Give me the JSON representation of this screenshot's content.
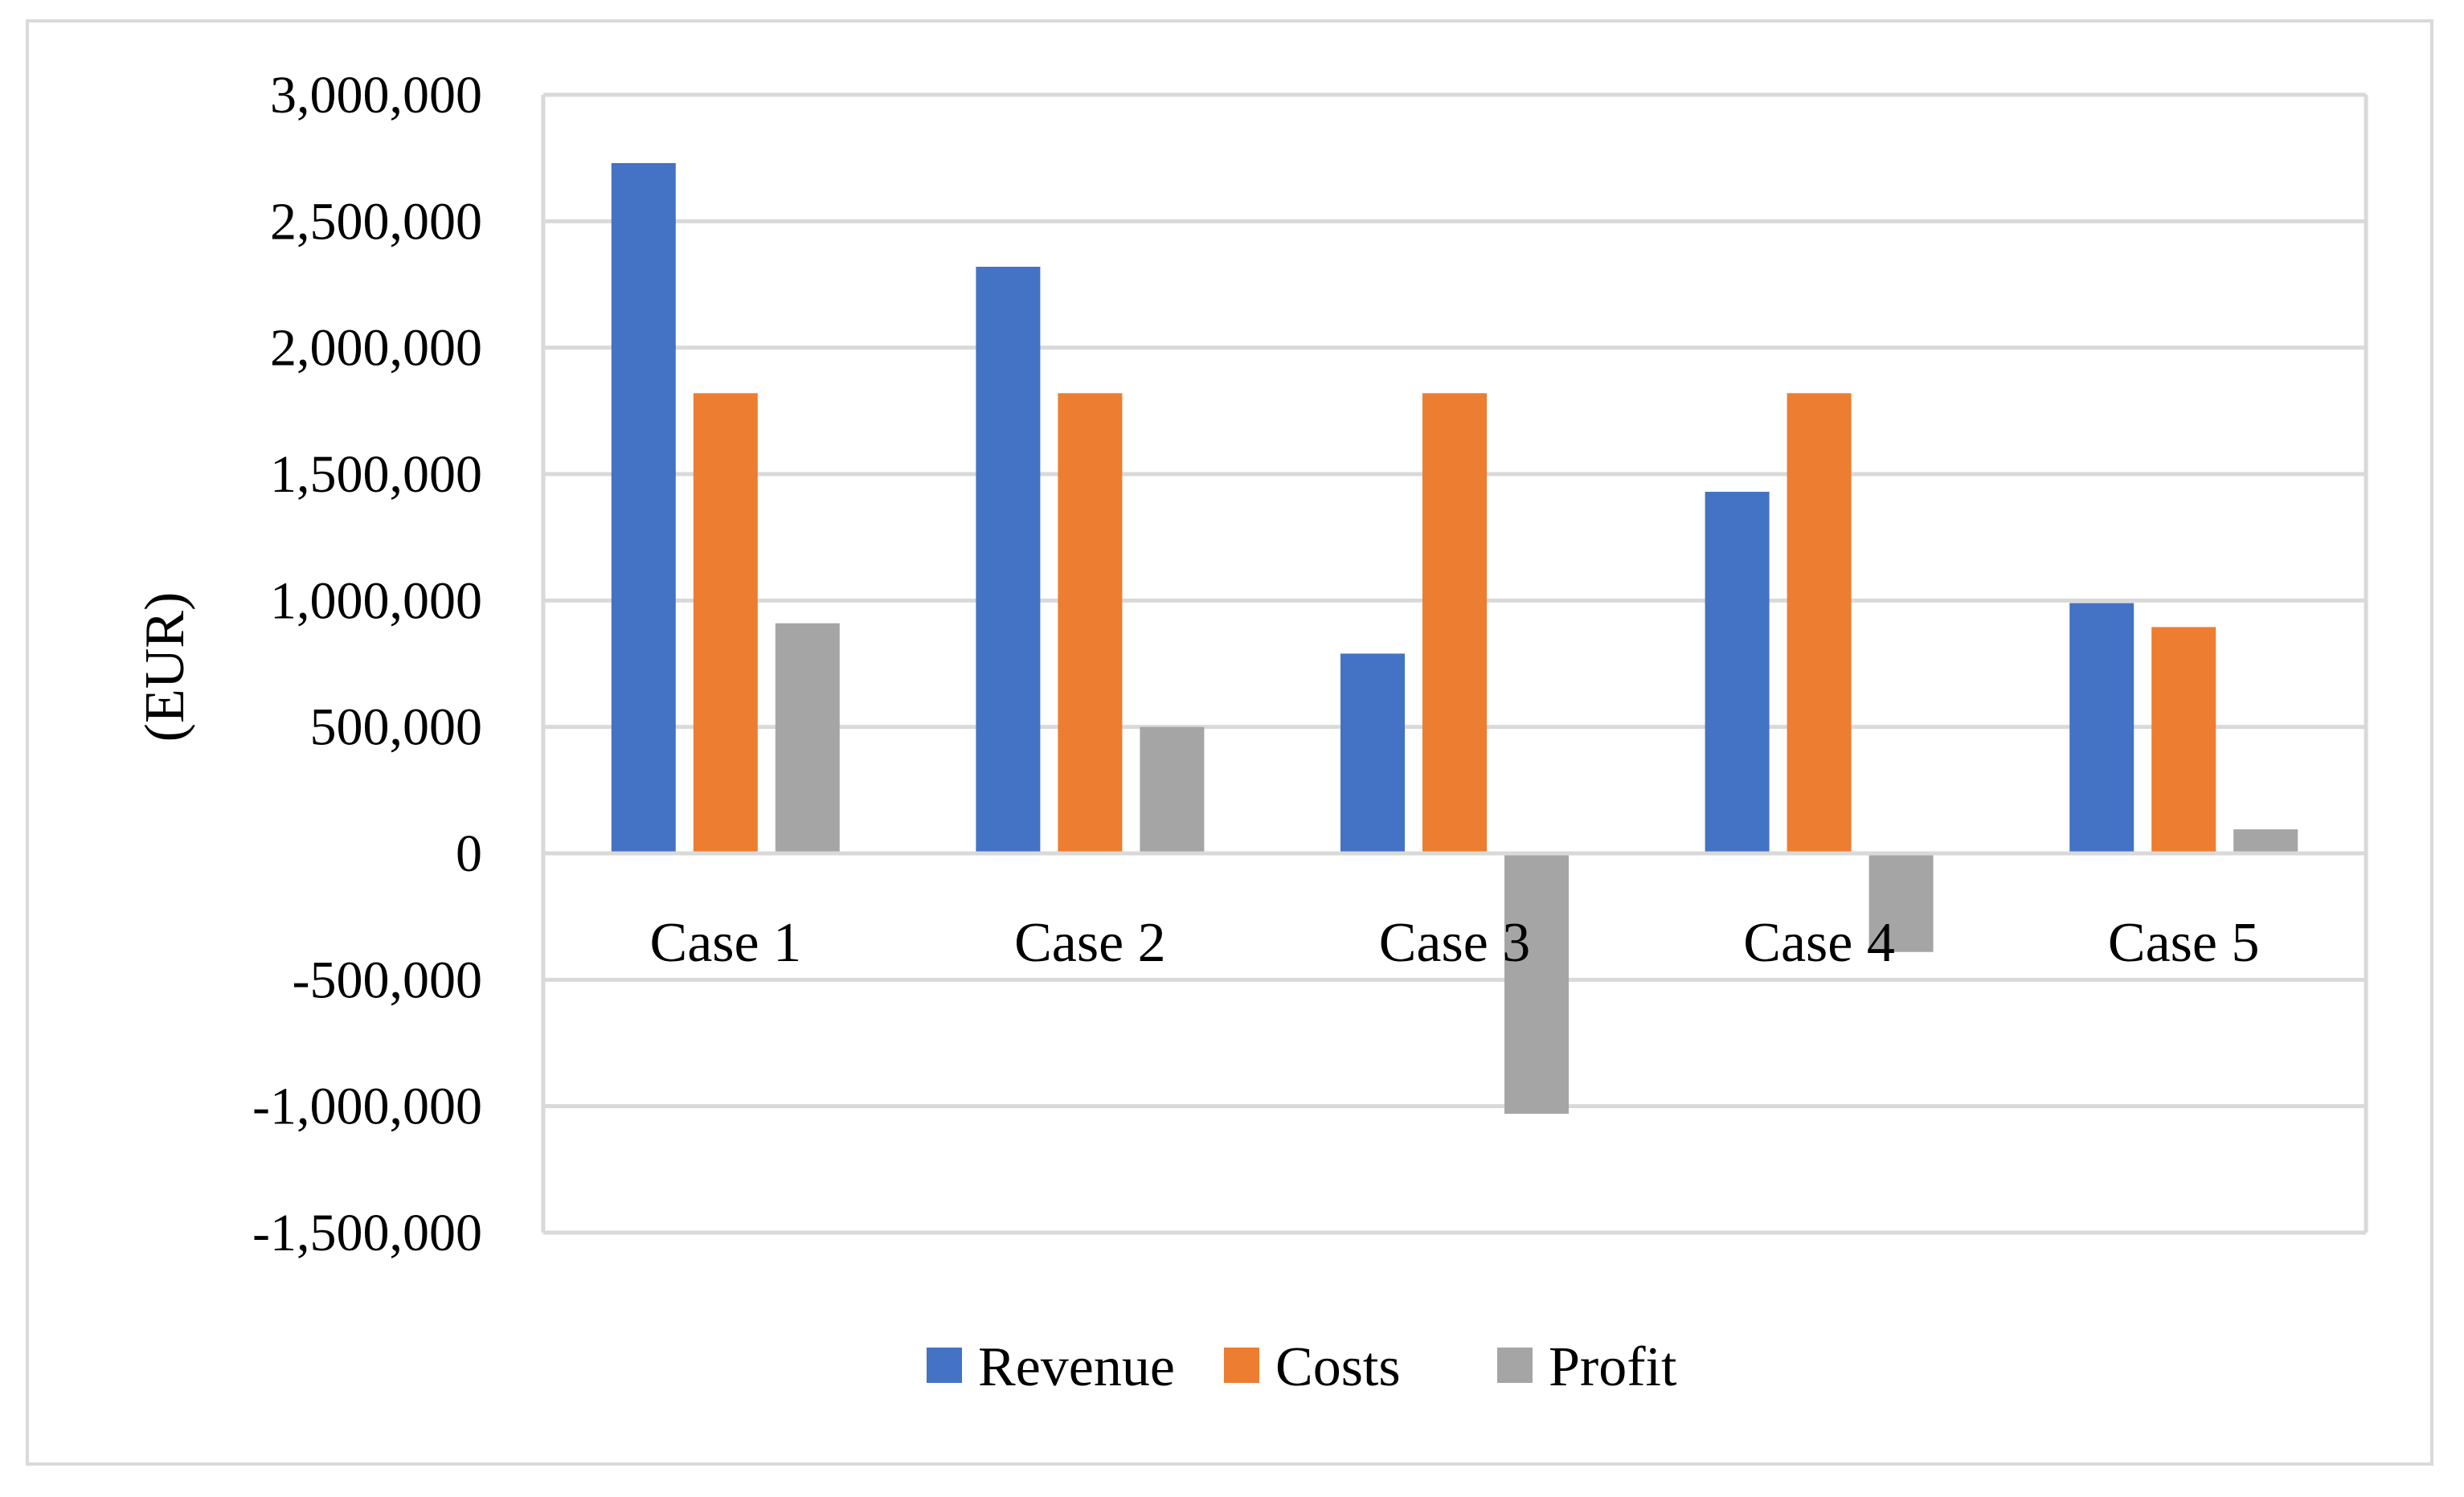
{
  "chart_data": {
    "type": "bar",
    "title": "",
    "xlabel": "",
    "ylabel": "(EUR)",
    "ylim": [
      -1500000,
      3000000
    ],
    "ytick_step": 500000,
    "ytick_labels": [
      "3,000,000",
      "2,500,000",
      "2,000,000",
      "1,500,000",
      "1,000,000",
      "500,000",
      "0",
      "-500,000",
      "-1,000,000",
      "-1,500,000"
    ],
    "categories": [
      "Case 1",
      "Case 2",
      "Case 3",
      "Case 4",
      "Case 5"
    ],
    "series": [
      {
        "name": "Revenue",
        "color": "#4472c4",
        "values": [
          2730000,
          2320000,
          790000,
          1430000,
          990000
        ]
      },
      {
        "name": "Costs",
        "color": "#ed7d31",
        "values": [
          1820000,
          1820000,
          1820000,
          1820000,
          895000
        ]
      },
      {
        "name": "Profit",
        "color": "#a5a5a5",
        "values": [
          910000,
          500000,
          -1030000,
          -390000,
          95000
        ]
      }
    ],
    "grid": true,
    "legend_position": "bottom",
    "grid_color": "#d9d9d9"
  }
}
